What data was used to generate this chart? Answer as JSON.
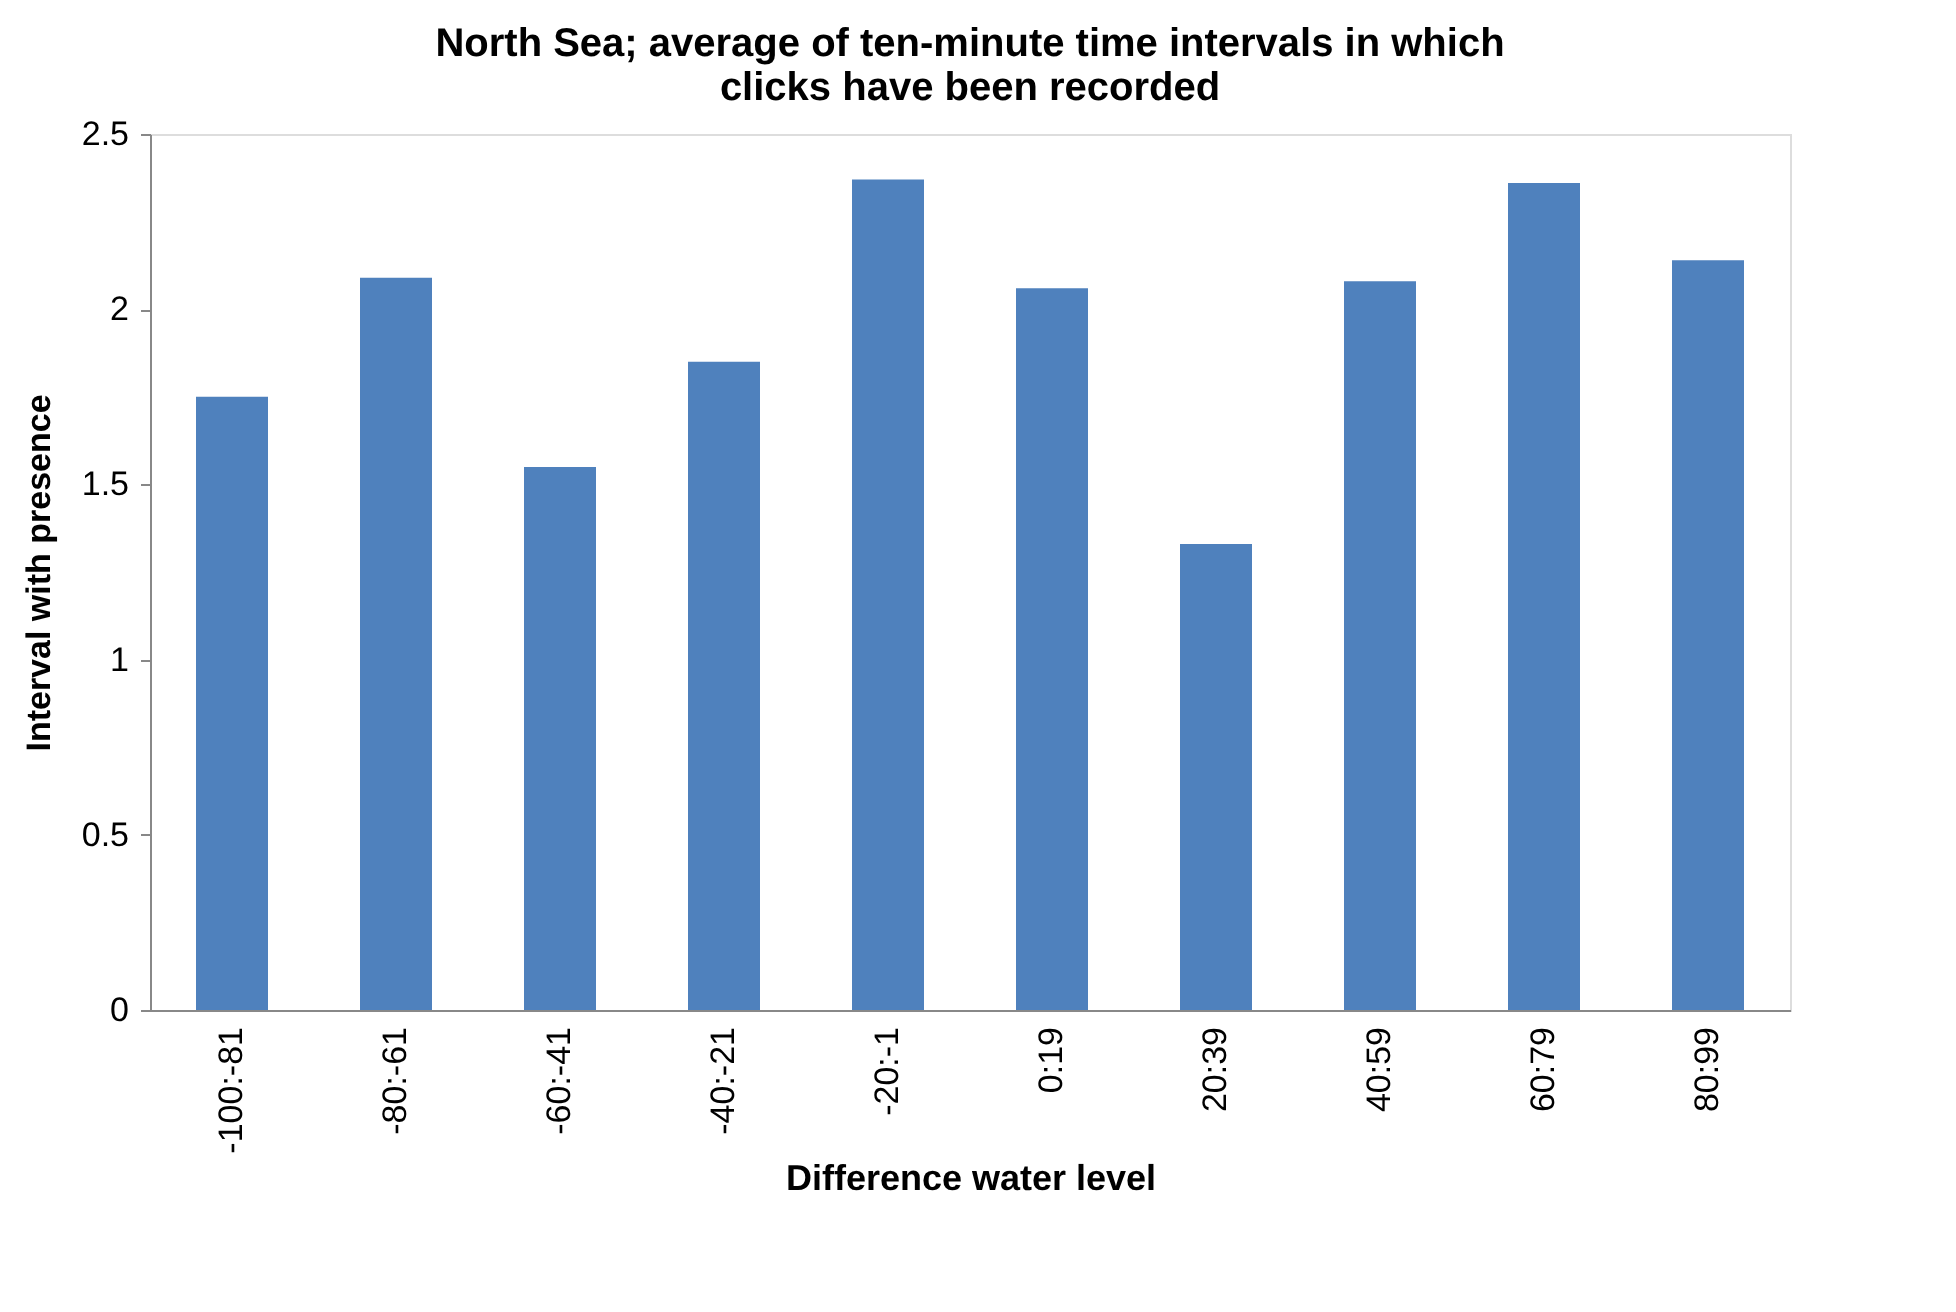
{
  "chart_data": {
    "type": "bar",
    "title": "North Sea; average of ten-minute time intervals in which clicks have been recorded",
    "xlabel": "Difference water level",
    "ylabel": "Interval with presence",
    "categories": [
      "-100:-81",
      "-80:-61",
      "-60:-41",
      "-40:-21",
      "-20:-1",
      "0:19",
      "20:39",
      "40:59",
      "60:79",
      "80:99"
    ],
    "values": [
      1.75,
      2.09,
      1.55,
      1.85,
      2.37,
      2.06,
      1.33,
      2.08,
      2.36,
      2.14
    ],
    "color": "#4f81bd",
    "ylim": [
      0,
      2.5
    ],
    "yticks": [
      0,
      0.5,
      1,
      1.5,
      2,
      2.5
    ],
    "grid": false
  }
}
